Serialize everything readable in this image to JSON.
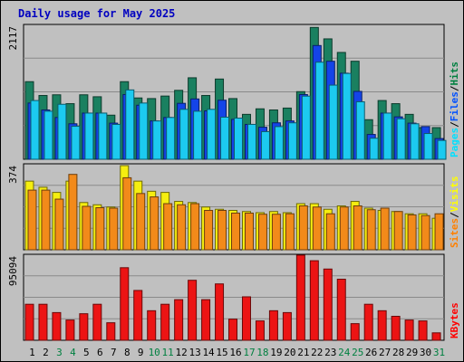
{
  "chart_data": {
    "title": "Daily usage for May 2025",
    "days": [
      "1",
      "2",
      "3",
      "4",
      "5",
      "6",
      "7",
      "8",
      "9",
      "10",
      "11",
      "12",
      "13",
      "14",
      "15",
      "16",
      "17",
      "18",
      "19",
      "20",
      "21",
      "22",
      "23",
      "24",
      "25",
      "26",
      "27",
      "28",
      "29",
      "30",
      "31"
    ],
    "weekend_days": [
      "3",
      "4",
      "10",
      "11",
      "17",
      "18",
      "24",
      "25",
      "31"
    ],
    "panels": [
      {
        "type": "bar",
        "max_label": "2117",
        "ymax": 2117,
        "legend": [
          {
            "text": "Pages",
            "color": "#00e0ff"
          },
          {
            "text": "/",
            "color": "#000000"
          },
          {
            "text": "Files",
            "color": "#0050ff"
          },
          {
            "text": "/",
            "color": "#000000"
          },
          {
            "text": "Hits",
            "color": "#008040"
          }
        ],
        "series": [
          {
            "key": "hits",
            "color": "#1a8060",
            "values": [
              1235,
              1015,
              1026,
              885,
              1026,
              995,
              702,
              1235,
              976,
              966,
              1006,
              1097,
              1297,
              1015,
              1277,
              966,
              715,
              803,
              785,
              815,
              1076,
              2098,
              1916,
              1700,
              1560,
              630,
              935,
              885,
              715,
              504,
              504
            ]
          },
          {
            "key": "files",
            "color": "#1444e8",
            "values": [
              895,
              785,
              665,
              565,
              735,
              735,
              575,
              1030,
              860,
              610,
              665,
              890,
              960,
              770,
              940,
              635,
              555,
              510,
              580,
              610,
              1030,
              1810,
              1560,
              1370,
              1080,
              395,
              735,
              675,
              575,
              520,
              330
            ]
          },
          {
            "key": "pages",
            "color": "#1ccaf0",
            "values": [
              935,
              765,
              875,
              525,
              735,
              735,
              555,
              1104,
              895,
              610,
              665,
              795,
              765,
              795,
              670,
              655,
              555,
              440,
              520,
              580,
              1005,
              1545,
              1180,
              1366,
              915,
              335,
              735,
              645,
              565,
              410,
              300
            ]
          }
        ]
      },
      {
        "type": "bar",
        "max_label": "374",
        "ymax": 374,
        "legend": [
          {
            "text": "Sites",
            "color": "#ff8000"
          },
          {
            "text": "/",
            "color": "#000000"
          },
          {
            "text": "Visits",
            "color": "#ffff00"
          }
        ],
        "series": [
          {
            "key": "visits",
            "color": "#f5ee10",
            "values": [
              305,
              278,
              255,
              305,
              210,
              200,
              190,
              374,
              305,
              260,
              255,
              215,
              210,
              190,
              180,
              175,
              170,
              165,
              170,
              165,
              205,
              205,
              180,
              195,
              215,
              185,
              175,
              170,
              160,
              160,
              140
            ]
          },
          {
            "key": "sites",
            "color": "#f28a1a",
            "values": [
              265,
              265,
              225,
              335,
              193,
              187,
              185,
              320,
              250,
              235,
              205,
              200,
              205,
              175,
              175,
              163,
              163,
              158,
              158,
              160,
              195,
              190,
              160,
              190,
              195,
              178,
              185,
              170,
              155,
              152,
              160
            ]
          }
        ]
      },
      {
        "type": "bar",
        "max_label": "95094",
        "ymax": 95094,
        "legend": [
          {
            "text": "KBytes",
            "color": "#ff0000"
          }
        ],
        "series": [
          {
            "key": "kbytes",
            "color": "#ec1414",
            "values": [
              40700,
              40700,
              31300,
              22900,
              30000,
              40700,
              19800,
              82000,
              56300,
              33400,
              40700,
              45900,
              67800,
              45900,
              63700,
              23900,
              49100,
              21900,
              33400,
              31300,
              96200,
              89900,
              80500,
              69000,
              18800,
              40700,
              33400,
              27100,
              22900,
              21900,
              8400
            ]
          }
        ]
      }
    ]
  }
}
